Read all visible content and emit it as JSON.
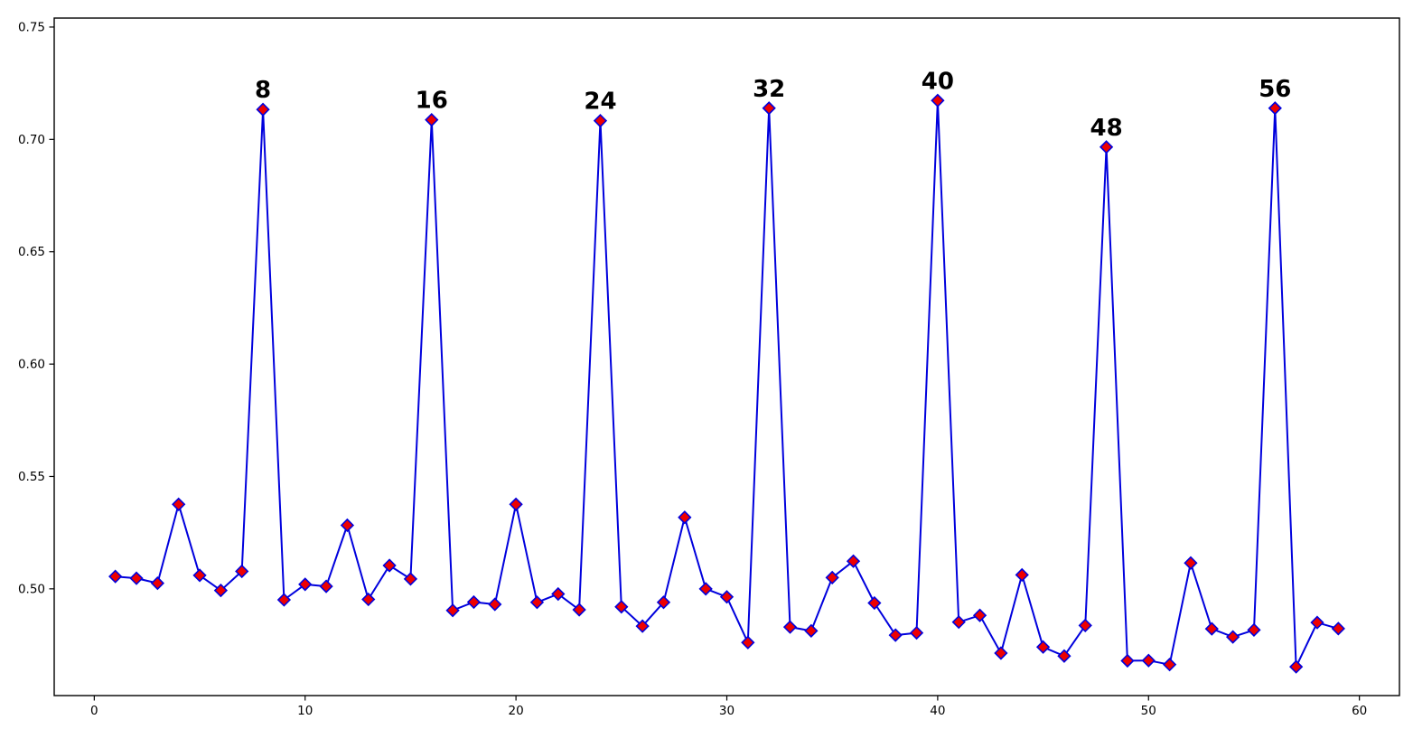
{
  "figure": {
    "background": "#ffffff"
  },
  "chart_data": {
    "type": "line",
    "title": "",
    "xlabel": "",
    "ylabel": "",
    "grid": false,
    "legend": null,
    "line_color": "#0000dd",
    "marker": {
      "shape": "diamond",
      "face_color": "#ee0000",
      "edge_color": "#0000dd",
      "size": 6.5
    },
    "axis_color": "#000000",
    "xlim": [
      -1.9,
      61.9
    ],
    "ylim": [
      0.4525,
      0.754
    ],
    "xticks": [
      0,
      10,
      20,
      30,
      40,
      50,
      60
    ],
    "xtick_labels": [
      "0",
      "10",
      "20",
      "30",
      "40",
      "50",
      "60"
    ],
    "yticks": [
      0.5,
      0.55,
      0.6,
      0.65,
      0.7,
      0.75
    ],
    "ytick_labels": [
      "0.50",
      "0.55",
      "0.60",
      "0.65",
      "0.70",
      "0.75"
    ],
    "x": [
      1,
      2,
      3,
      4,
      5,
      6,
      7,
      8,
      9,
      10,
      11,
      12,
      13,
      14,
      15,
      16,
      17,
      18,
      19,
      20,
      21,
      22,
      23,
      24,
      25,
      26,
      27,
      28,
      29,
      30,
      31,
      32,
      33,
      34,
      35,
      36,
      37,
      38,
      39,
      40,
      41,
      42,
      43,
      44,
      45,
      46,
      47,
      48,
      49,
      50,
      51,
      52,
      53,
      54,
      55,
      56,
      57,
      58,
      59
    ],
    "values": [
      0.5055,
      0.5047,
      0.5025,
      0.5376,
      0.506,
      0.4993,
      0.5078,
      0.7133,
      0.4951,
      0.502,
      0.5011,
      0.5283,
      0.4953,
      0.5104,
      0.5044,
      0.7087,
      0.4904,
      0.4941,
      0.4931,
      0.5376,
      0.494,
      0.4977,
      0.4907,
      0.7083,
      0.492,
      0.4834,
      0.494,
      0.5318,
      0.5,
      0.4964,
      0.4761,
      0.7139,
      0.483,
      0.4813,
      0.505,
      0.5123,
      0.4937,
      0.4794,
      0.4804,
      0.7173,
      0.4852,
      0.4882,
      0.4714,
      0.5062,
      0.4741,
      0.4701,
      0.4837,
      0.6966,
      0.468,
      0.4681,
      0.4663,
      0.5115,
      0.4822,
      0.4786,
      0.4817,
      0.7139,
      0.4653,
      0.485,
      0.4823
    ],
    "annotations": [
      {
        "label": "8",
        "x": 8,
        "y": 0.7133
      },
      {
        "label": "16",
        "x": 16,
        "y": 0.7087
      },
      {
        "label": "24",
        "x": 24,
        "y": 0.7083
      },
      {
        "label": "32",
        "x": 32,
        "y": 0.7139
      },
      {
        "label": "40",
        "x": 40,
        "y": 0.7173
      },
      {
        "label": "48",
        "x": 48,
        "y": 0.6966
      },
      {
        "label": "56",
        "x": 56,
        "y": 0.7139
      }
    ]
  }
}
